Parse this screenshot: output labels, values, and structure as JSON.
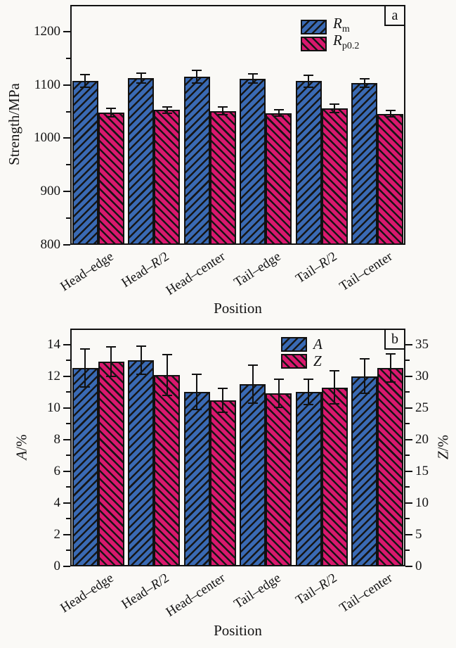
{
  "figure": {
    "background": "#faf9f6",
    "frame_color": "#111111",
    "bar_colors": {
      "blue": "#3a6ab4",
      "pink": "#d9186e"
    }
  },
  "chart_data": [
    {
      "panel_label": "a",
      "type": "bar",
      "xlabel": "Position",
      "ylabel": "Strength/MPa",
      "categories": [
        "Head–edge",
        "Head–R/2",
        "Head–center",
        "Tail–edge",
        "Tail–R/2",
        "Tail–center"
      ],
      "ylim": [
        800,
        1250
      ],
      "yticks": [
        800,
        900,
        1000,
        1100,
        1200
      ],
      "yminor_step": 50,
      "grid": false,
      "legend_position": "upper-center-right",
      "series": [
        {
          "label_base": "R",
          "label_sub": "m",
          "axis": "left",
          "color": "#3a6ab4",
          "hatch": "fwd",
          "values": [
            1107,
            1113,
            1115,
            1112,
            1107,
            1104
          ],
          "errors": [
            12,
            9,
            12,
            9,
            11,
            8
          ]
        },
        {
          "label_base": "R",
          "label_sub": "p0.2",
          "axis": "left",
          "color": "#d9186e",
          "hatch": "bwd",
          "values": [
            1048,
            1053,
            1051,
            1047,
            1056,
            1046
          ],
          "errors": [
            8,
            6,
            7,
            6,
            8,
            6
          ]
        }
      ]
    },
    {
      "panel_label": "b",
      "type": "bar",
      "xlabel": "Position",
      "ylabel": "A/%",
      "y2label": "Z/%",
      "categories": [
        "Head–edge",
        "Head–R/2",
        "Head–center",
        "Tail–edge",
        "Tail–R/2",
        "Tail–center"
      ],
      "ylim": [
        0,
        15
      ],
      "yticks": [
        0,
        2,
        4,
        6,
        8,
        10,
        12,
        14
      ],
      "yminor_step": 1,
      "y2lim": [
        0,
        37.5
      ],
      "y2ticks": [
        0,
        5,
        10,
        15,
        20,
        25,
        30,
        35
      ],
      "y2minor_step": 2.5,
      "grid": false,
      "legend_position": "upper-center-right",
      "series": [
        {
          "label_base": "A",
          "label_sub": "",
          "axis": "left",
          "color": "#3a6ab4",
          "hatch": "fwd",
          "values": [
            12.5,
            13.0,
            11.0,
            11.5,
            11.0,
            12.0
          ],
          "errors": [
            1.2,
            0.9,
            1.1,
            1.2,
            0.8,
            1.1
          ]
        },
        {
          "label_base": "Z",
          "label_sub": "",
          "axis": "right",
          "color": "#d9186e",
          "hatch": "bwd",
          "values": [
            32.3,
            30.2,
            26.2,
            27.3,
            28.2,
            31.3
          ],
          "errors": [
            2.3,
            3.2,
            1.9,
            2.2,
            2.6,
            2.2
          ]
        }
      ]
    }
  ]
}
